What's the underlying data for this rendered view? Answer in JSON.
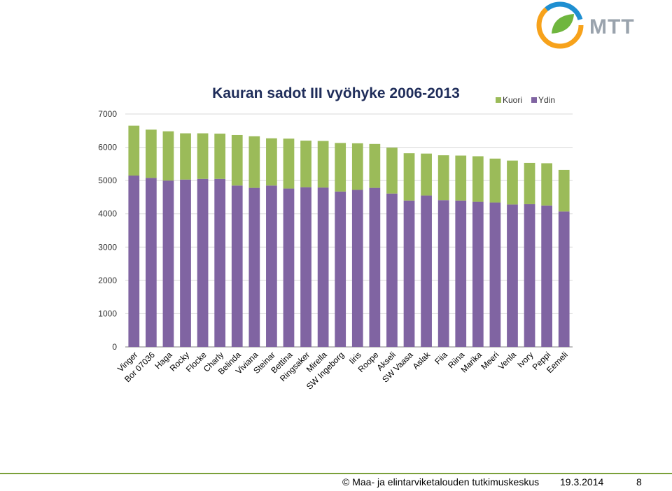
{
  "logo": {
    "text": "MTT"
  },
  "footer": {
    "copyright": "© Maa- ja elintarviketalouden tutkimuskeskus",
    "date": "19.3.2014",
    "page": "8"
  },
  "colors": {
    "kuori": "#9bbb59",
    "ydin": "#8064a2",
    "grid": "#d9d9d9",
    "axis": "#808080"
  },
  "chart_data": {
    "type": "bar",
    "stacked": true,
    "title": "Kauran sadot III vyöhyke 2006-2013",
    "xlabel": "",
    "ylabel": "",
    "ylim": [
      0,
      7000
    ],
    "yticks": [
      0,
      1000,
      2000,
      3000,
      4000,
      5000,
      6000,
      7000
    ],
    "grid": true,
    "legend_position": "top-right",
    "categories": [
      "Vinger",
      "Bor 07036",
      "Haga",
      "Rocky",
      "Flocke",
      "Charly",
      "Belinda",
      "Viviana",
      "Steinar",
      "Bettina",
      "Ringsaker",
      "Mirella",
      "SW Ingeborg",
      "Iiris",
      "Roope",
      "Akseli",
      "SW Vaasa",
      "Aslak",
      "Fiia",
      "Riina",
      "Marika",
      "Meeri",
      "Venla",
      "Ivory",
      "Peppi",
      "Eemeli"
    ],
    "series": [
      {
        "name": "Ydin",
        "color": "#8064a2",
        "values": [
          5150,
          5080,
          5000,
          5030,
          5050,
          5050,
          4850,
          4780,
          4850,
          4760,
          4800,
          4790,
          4670,
          4720,
          4780,
          4610,
          4400,
          4550,
          4410,
          4400,
          4360,
          4340,
          4280,
          4290,
          4250,
          4070
        ]
      },
      {
        "name": "Kuori",
        "color": "#9bbb59",
        "values": [
          1500,
          1450,
          1480,
          1390,
          1370,
          1360,
          1520,
          1550,
          1420,
          1500,
          1400,
          1400,
          1460,
          1400,
          1320,
          1380,
          1420,
          1260,
          1350,
          1350,
          1370,
          1320,
          1320,
          1240,
          1270,
          1250
        ]
      }
    ]
  }
}
